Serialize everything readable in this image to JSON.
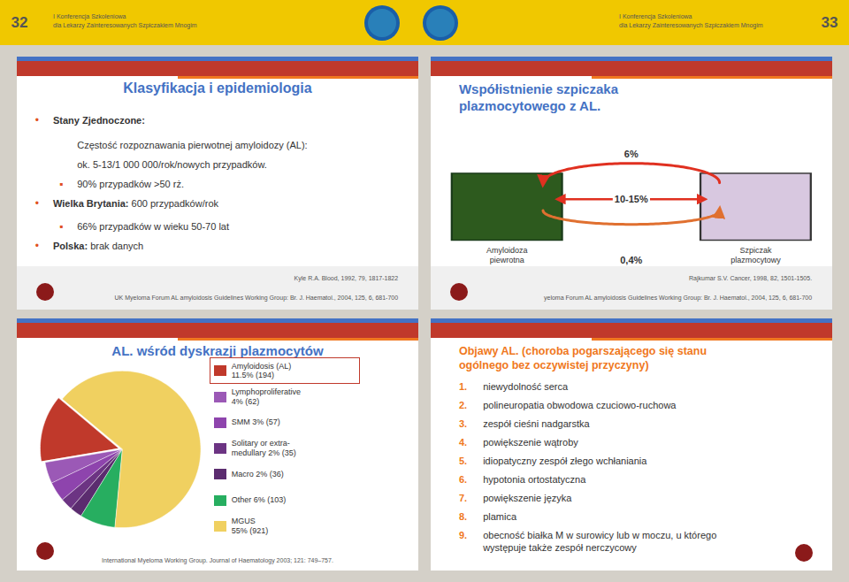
{
  "header": {
    "page_numbers": [
      "32",
      "33"
    ],
    "annotations": [
      "I Konferencja Szkoleniowa\ndla Lekarzy Zainteresowanych Szpiczakiem Mnogim",
      "I Konferencja Szkoleniowa\ndla Lekarzy Zainteresowanych Szpiczakiem Mnogim"
    ]
  },
  "panels": [
    {
      "title": "Klasyfikacja i epidemiologia",
      "color": "#4472c4",
      "bullets": [
        {
          "symbol": "•",
          "bold": "Stany Zjednoczone:"
        },
        {
          "text": "Częstość rozpoznawania pierwotnej amyloidozy (AL):"
        },
        {
          "text": "ok. 5-13/1 000 000/rok/nowych przypadków."
        },
        {
          "symbol": "▪",
          "text": "90% przypadków >50 rż."
        },
        {
          "symbol": "•",
          "bold": "Wielka Brytania:",
          "text": "600 przypadków/rok"
        },
        {
          "symbol": "▪",
          "text": "66% przypadków w wieku 50-70 lat"
        },
        {
          "symbol": "•",
          "bold": "Polska:",
          "text": "brak danych"
        }
      ],
      "references": [
        "Kyle R.A. Blood, 1992, 79, 1817-1822",
        "UK Myeloma Forum AL amyloidosis Guidelines Working Group: Br. J. Haematol., 2004, 125, 6, 681-700"
      ]
    },
    {
      "title": "Współistnienie szpiczaka\nplazmocytowego z AL.",
      "color": "#4472c4",
      "annotations": [
        "6%",
        "10-15%",
        "0,4%"
      ],
      "labels": [
        "Amyloidoza\npiewrotna",
        "Szpiczak\nplazmocytowy"
      ],
      "references": [
        "Rajkumar S.V. Cancer, 1998, 82, 1501-1505.",
        "yeloma Forum AL amyloidosis Guidelines Working Group: Br. J. Haematol., 2004, 125, 6, 681-700"
      ]
    },
    {
      "title": "Objawy AL. (choroba pogarszającego się stanu\nogólnego bez oczywistej przyczyny)",
      "color": "#f07820",
      "items": [
        {
          "number": "1.",
          "text": "niewydolność serca"
        },
        {
          "number": "2.",
          "text": "polineuropatia obwodowa czuciowo-ruchowa"
        },
        {
          "number": "3.",
          "text": "zespół cieśni nadgarstka"
        },
        {
          "number": "4.",
          "text": "powiększenie wątroby"
        },
        {
          "number": "5.",
          "text": "idiopatyczny zespół złego wchłaniania"
        },
        {
          "number": "6.",
          "text": "hypotonia ortostatyczna"
        },
        {
          "number": "7.",
          "text": "powiększenie języka"
        },
        {
          "number": "8.",
          "text": "plamica"
        },
        {
          "number": "9.",
          "text": "obecność białka M w surowicy lub w moczu, u którego\nwystępuje także zespół nerczycowy"
        }
      ]
    }
  ],
  "chart_data": {
    "type": "pie",
    "title": "AL. wśród dyskrazji plazmocytów",
    "categories": [
      "Amyloidosis (AL)\n11.5% (194)",
      "Lymphoproliferative\n4% (62)",
      "SMM 3% (57)",
      "Solitary or extra-\nmedullary 2% (35)",
      "Macro 2% (36)",
      "Other 6% (103)",
      "MGUS\n55% (921)"
    ],
    "values": [
      194,
      62,
      57,
      35,
      36,
      103,
      921
    ],
    "colors": [
      "#c0392b",
      "#9b59b6",
      "#8e44ad",
      "#6c3483",
      "#5b2c6f",
      "#27ae60",
      "#f0d060"
    ],
    "annotations": [
      "International Myeloma Working Group. Journal of Haematology 2003; 121: 749–757."
    ]
  }
}
